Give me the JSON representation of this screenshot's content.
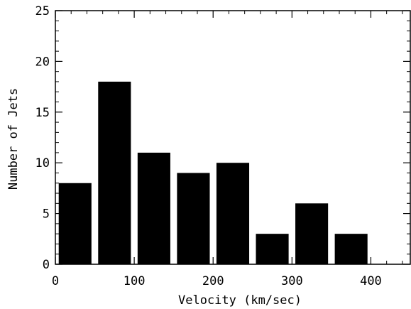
{
  "chart_data": {
    "type": "bar",
    "xlabel": "Velocity (km/sec)",
    "ylabel": "Number of Jets",
    "xlim": [
      0,
      450
    ],
    "ylim": [
      0,
      25
    ],
    "x_ticks": [
      0,
      100,
      200,
      300,
      400
    ],
    "x_tick_labels": [
      "0",
      "100",
      "200",
      "300",
      "400"
    ],
    "y_ticks": [
      0,
      5,
      10,
      15,
      20,
      25
    ],
    "y_tick_labels": [
      "0",
      "5",
      "10",
      "15",
      "20",
      "25"
    ],
    "bin_width": 50,
    "bins": [
      {
        "x0": 0,
        "x1": 50,
        "value": 8
      },
      {
        "x0": 50,
        "x1": 100,
        "value": 18
      },
      {
        "x0": 100,
        "x1": 150,
        "value": 11
      },
      {
        "x0": 150,
        "x1": 200,
        "value": 9
      },
      {
        "x0": 200,
        "x1": 250,
        "value": 10
      },
      {
        "x0": 250,
        "x1": 300,
        "value": 3
      },
      {
        "x0": 300,
        "x1": 350,
        "value": 6
      },
      {
        "x0": 350,
        "x1": 400,
        "value": 3
      }
    ],
    "grid": false,
    "bar_color": "#000000"
  }
}
